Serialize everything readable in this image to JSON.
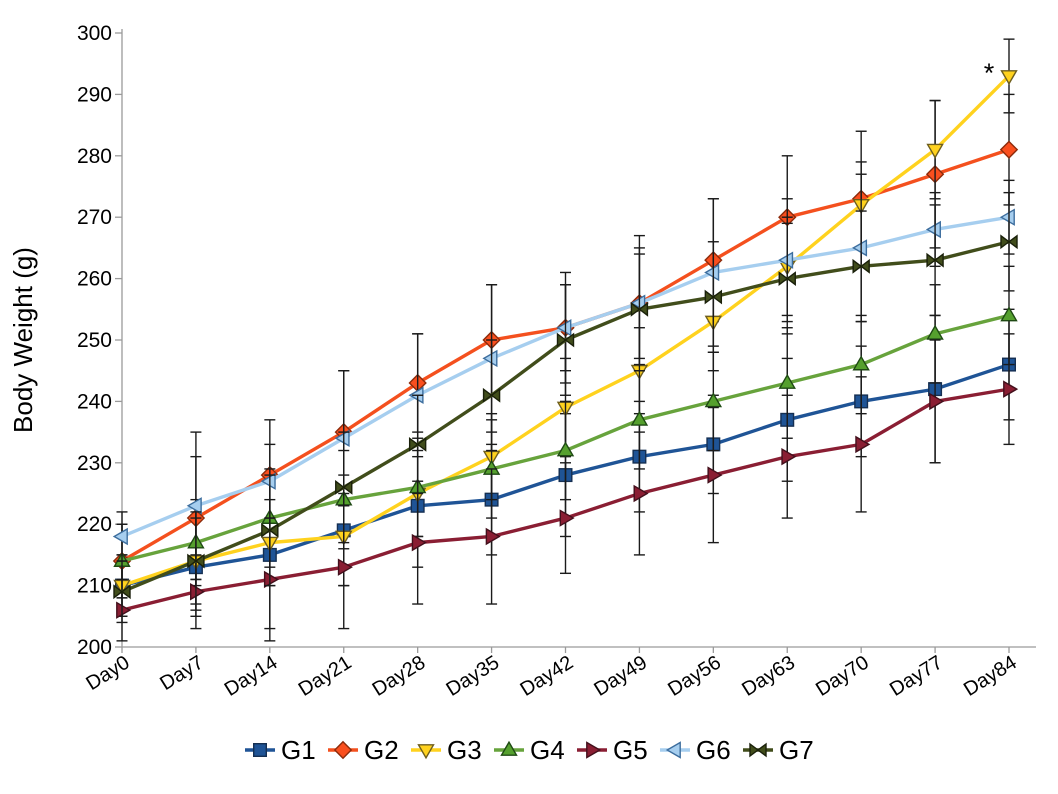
{
  "figure": {
    "ylabel": "Body Weight (g)",
    "annotation_text": "*",
    "legend_labels": [
      "G1",
      "G2",
      "G3",
      "G4",
      "G5",
      "G6",
      "G7"
    ]
  },
  "chart_data": {
    "type": "line",
    "title": "",
    "xlabel": "",
    "ylabel": "Body Weight (g)",
    "ylim": [
      200,
      300
    ],
    "ytick_step": 10,
    "grid": false,
    "legend_position": "bottom",
    "error_bars": true,
    "annotations": [
      {
        "text": "*",
        "series": "G3",
        "category": "Day84",
        "position": "upper-left-of-point"
      }
    ],
    "categories": [
      "Day0",
      "Day7",
      "Day14",
      "Day21",
      "Day28",
      "Day35",
      "Day42",
      "Day49",
      "Day56",
      "Day63",
      "Day70",
      "Day77",
      "Day84"
    ],
    "series": [
      {
        "name": "G1",
        "marker": "square",
        "color": "#1F5496",
        "fill": "#1F5496",
        "border": "#152F52",
        "values": [
          210,
          213,
          215,
          219,
          223,
          224,
          228,
          231,
          233,
          237,
          240,
          242,
          246
        ],
        "errors": [
          5,
          8,
          12,
          9,
          10,
          9,
          10,
          9,
          8,
          10,
          9,
          12,
          9
        ]
      },
      {
        "name": "G2",
        "marker": "diamond",
        "color": "#F4501E",
        "fill": "#FA4F1E",
        "border": "#8C2B0B",
        "values": [
          214,
          221,
          228,
          235,
          243,
          250,
          252,
          256,
          263,
          270,
          273,
          277,
          281
        ],
        "errors": [
          6,
          10,
          9,
          10,
          8,
          9,
          9,
          9,
          10,
          10,
          11,
          12,
          9
        ]
      },
      {
        "name": "G3",
        "marker": "triangle-down",
        "color": "#FFD21E",
        "fill": "#FFD21E",
        "border": "#6E5E1E",
        "values": [
          210,
          214,
          217,
          218,
          225,
          231,
          239,
          245,
          253,
          262,
          272,
          281,
          293
        ],
        "errors": [
          5,
          7,
          7,
          8,
          7,
          7,
          8,
          7,
          8,
          8,
          7,
          8,
          6
        ]
      },
      {
        "name": "G4",
        "marker": "triangle-up",
        "color": "#67A33C",
        "fill": "#55A02E",
        "border": "#1F4A14",
        "values": [
          214,
          217,
          221,
          224,
          226,
          229,
          232,
          237,
          240,
          243,
          246,
          251,
          254
        ],
        "errors": [
          6,
          7,
          8,
          8,
          8,
          8,
          8,
          8,
          8,
          9,
          8,
          8,
          8
        ]
      },
      {
        "name": "G5",
        "marker": "triangle-right",
        "color": "#8A1E33",
        "fill": "#8A1E33",
        "border": "#43101C",
        "values": [
          206,
          209,
          211,
          213,
          217,
          218,
          221,
          225,
          228,
          231,
          233,
          240,
          242
        ],
        "errors": [
          5,
          6,
          10,
          10,
          10,
          11,
          9,
          10,
          11,
          10,
          11,
          10,
          9
        ]
      },
      {
        "name": "G6",
        "marker": "triangle-left",
        "color": "#A6CEEF",
        "fill": "#A6CEEF",
        "border": "#3D6E9E",
        "values": [
          218,
          223,
          227,
          234,
          241,
          247,
          252,
          256,
          261,
          263,
          265,
          268,
          270
        ],
        "errors": [
          4,
          12,
          6,
          11,
          10,
          12,
          7,
          11,
          12,
          10,
          12,
          6,
          6
        ]
      },
      {
        "name": "G7",
        "marker": "bowtie",
        "color": "#414D1B",
        "fill": "#414D1B",
        "border": "#1A200A",
        "values": [
          209,
          214,
          219,
          226,
          233,
          241,
          250,
          255,
          257,
          260,
          262,
          263,
          266
        ],
        "errors": [
          5,
          8,
          9,
          9,
          8,
          9,
          9,
          9,
          9,
          9,
          9,
          9,
          8
        ]
      }
    ]
  }
}
